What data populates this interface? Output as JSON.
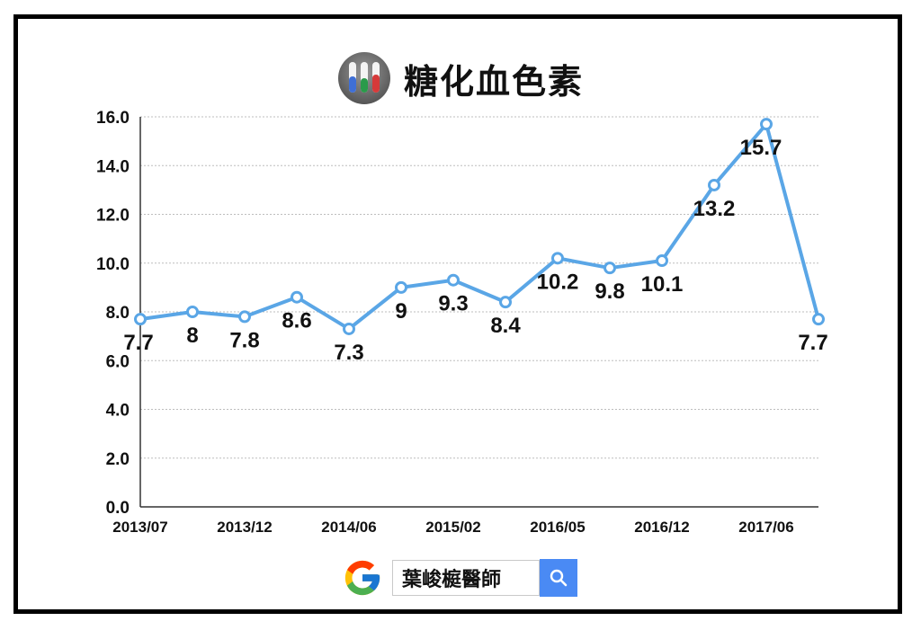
{
  "title": "糖化血色素",
  "icon": "test-tubes-icon",
  "colors": {
    "line": "#5aa6e6",
    "grid": "#bdbdbd",
    "axis": "#333333",
    "frame": "#000000",
    "search_button": "#4a8af4"
  },
  "search": {
    "query": "葉峻榳醫師",
    "logo_icon": "google-logo-icon",
    "button_icon": "magnifier-icon"
  },
  "chart_data": {
    "type": "line",
    "title": "糖化血色素",
    "xlabel": "",
    "ylabel": "",
    "ylim": [
      0,
      16
    ],
    "yticks": [
      "0.0",
      "2.0",
      "4.0",
      "6.0",
      "8.0",
      "10.0",
      "12.0",
      "14.0",
      "16.0"
    ],
    "x_tick_labels": [
      {
        "index": 0,
        "label": "2013/07"
      },
      {
        "index": 2,
        "label": "2013/12"
      },
      {
        "index": 4,
        "label": "2014/06"
      },
      {
        "index": 6,
        "label": "2015/02"
      },
      {
        "index": 8,
        "label": "2016/05"
      },
      {
        "index": 10,
        "label": "2016/12"
      },
      {
        "index": 12,
        "label": "2017/06"
      }
    ],
    "grid": true,
    "series": [
      {
        "values": [
          7.7,
          8,
          7.8,
          8.6,
          7.3,
          9,
          9.3,
          8.4,
          10.2,
          9.8,
          10.1,
          13.2,
          15.7,
          7.7
        ],
        "labels": [
          "7.7",
          "8",
          "7.8",
          "8.6",
          "7.3",
          "9",
          "9.3",
          "8.4",
          "10.2",
          "9.8",
          "10.1",
          "13.2",
          "15.7",
          "7.7"
        ]
      }
    ]
  }
}
